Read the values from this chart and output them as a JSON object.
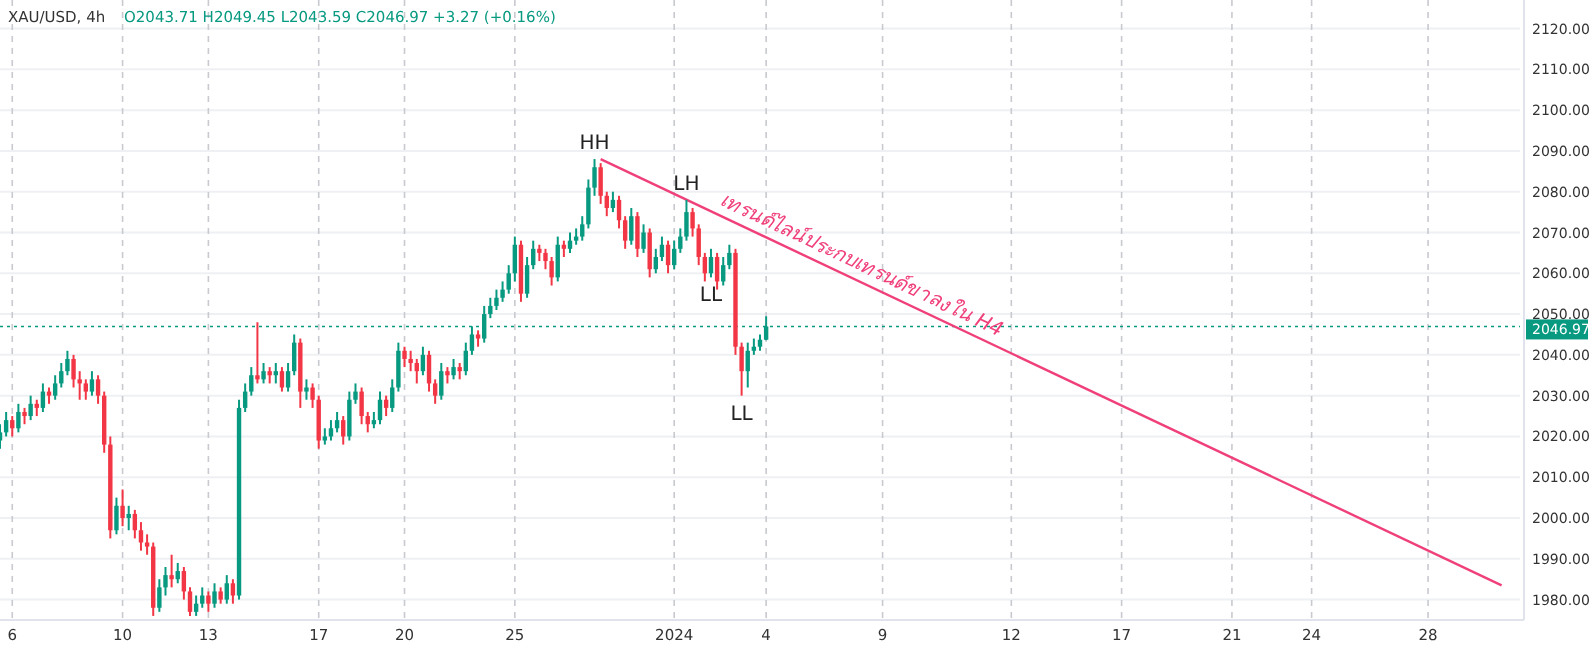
{
  "chart_data": {
    "type": "candlestick",
    "title": "XAU/USD, 4h",
    "subtitle": "O2043.71 H2049.45 L2043.59 C2046.97 +3.27 (+0.16%)",
    "categories": [
      null,
      null,
      "6",
      null,
      null,
      null,
      null,
      null,
      null,
      null,
      null,
      null,
      null,
      null,
      null,
      null,
      null,
      null,
      null,
      null,
      "10",
      null,
      null,
      null,
      null,
      null,
      null,
      null,
      null,
      null,
      null,
      null,
      null,
      null,
      "13",
      null,
      null,
      null,
      null,
      null,
      null,
      null,
      null,
      null,
      null,
      null,
      null,
      null,
      null,
      null,
      null,
      null,
      "17",
      null,
      null,
      null,
      null,
      null,
      null,
      null,
      null,
      null,
      null,
      null,
      null,
      null,
      "20",
      null,
      null,
      null,
      null,
      null,
      null,
      null,
      null,
      null,
      null,
      null,
      null,
      null,
      null,
      null,
      null,
      null,
      "25",
      null,
      null,
      null,
      null,
      null,
      null,
      null,
      null,
      null,
      null,
      null,
      null,
      null,
      null,
      null,
      null,
      null,
      null,
      null,
      null,
      null,
      null,
      null,
      null,
      null,
      "2024",
      null,
      null,
      null,
      null,
      null,
      null,
      null,
      null,
      null,
      null,
      null,
      null,
      null,
      null,
      "4",
      null,
      null,
      null,
      null,
      null,
      null,
      null,
      null,
      null,
      null,
      null,
      null,
      null,
      null,
      null,
      null,
      null,
      null,
      "9",
      null,
      null,
      null,
      null,
      null,
      null,
      null,
      null,
      null,
      null,
      null,
      null,
      null,
      null,
      null,
      null,
      null,
      null,
      null,
      null,
      "12",
      null,
      null,
      null,
      null,
      null,
      null,
      null,
      null,
      null,
      null,
      null,
      null,
      null,
      null,
      null,
      null,
      null,
      "17",
      null,
      null,
      null,
      null,
      null,
      null,
      null,
      null,
      null,
      null,
      null,
      null,
      null,
      null,
      null,
      null,
      null,
      "21",
      null,
      null,
      null,
      null,
      null,
      null,
      null,
      null,
      null,
      null,
      null,
      null,
      "24",
      null,
      null,
      null,
      null,
      null,
      null,
      null,
      null,
      null,
      null,
      null,
      null,
      null,
      null,
      null,
      null,
      null,
      null,
      "28",
      null,
      null,
      null,
      null,
      null,
      null,
      null,
      null,
      null,
      null,
      null,
      null,
      null,
      null,
      null
    ],
    "ohlc": [
      [
        2019,
        2023,
        2017,
        2021
      ],
      [
        2021,
        2026,
        2020,
        2024
      ],
      [
        2024,
        2025,
        2020,
        2022
      ],
      [
        2022,
        2028,
        2021,
        2026
      ],
      [
        2026,
        2027,
        2023,
        2025
      ],
      [
        2025,
        2030,
        2024,
        2028
      ],
      [
        2028,
        2029,
        2025,
        2027
      ],
      [
        2027,
        2033,
        2026,
        2031
      ],
      [
        2031,
        2032,
        2028,
        2030
      ],
      [
        2030,
        2035,
        2029,
        2033
      ],
      [
        2033,
        2038,
        2032,
        2036
      ],
      [
        2036,
        2041,
        2035,
        2039
      ],
      [
        2039,
        2040,
        2032,
        2034
      ],
      [
        2034,
        2036,
        2029,
        2033
      ],
      [
        2033,
        2034,
        2029,
        2031
      ],
      [
        2031,
        2036,
        2030,
        2034
      ],
      [
        2034,
        2035,
        2028,
        2030
      ],
      [
        2030,
        2031,
        2016,
        2018
      ],
      [
        2018,
        2020,
        1995,
        1997
      ],
      [
        1997,
        2005,
        1996,
        2003
      ],
      [
        2003,
        2007,
        1998,
        2000
      ],
      [
        2000,
        2003,
        1997,
        2001
      ],
      [
        2001,
        2002,
        1995,
        1997
      ],
      [
        1997,
        1999,
        1992,
        1994
      ],
      [
        1994,
        1996,
        1991,
        1993
      ],
      [
        1993,
        1994,
        1976,
        1978
      ],
      [
        1978,
        1985,
        1977,
        1983
      ],
      [
        1983,
        1988,
        1981,
        1986
      ],
      [
        1986,
        1991,
        1983,
        1985
      ],
      [
        1985,
        1989,
        1984,
        1987
      ],
      [
        1987,
        1988,
        1980,
        1982
      ],
      [
        1982,
        1983,
        1976,
        1977
      ],
      [
        1977,
        1981,
        1976,
        1979
      ],
      [
        1979,
        1983,
        1978,
        1981
      ],
      [
        1981,
        1982,
        1977,
        1979
      ],
      [
        1979,
        1984,
        1978,
        1982
      ],
      [
        1982,
        1983,
        1979,
        1980
      ],
      [
        1980,
        1986,
        1979,
        1984
      ],
      [
        1984,
        1985,
        1979,
        1981
      ],
      [
        1981,
        2029,
        1980,
        2027
      ],
      [
        2027,
        2033,
        2026,
        2031
      ],
      [
        2031,
        2037,
        2030,
        2035
      ],
      [
        2035,
        2048,
        2033,
        2034
      ],
      [
        2034,
        2038,
        2033,
        2036
      ],
      [
        2036,
        2037,
        2033,
        2035
      ],
      [
        2035,
        2038,
        2033,
        2036
      ],
      [
        2036,
        2037,
        2031,
        2032
      ],
      [
        2032,
        2038,
        2031,
        2036
      ],
      [
        2036,
        2045,
        2035,
        2043
      ],
      [
        2043,
        2044,
        2027,
        2031
      ],
      [
        2031,
        2034,
        2029,
        2032
      ],
      [
        2032,
        2033,
        2027,
        2029
      ],
      [
        2029,
        2030,
        2017,
        2019
      ],
      [
        2019,
        2022,
        2018,
        2020
      ],
      [
        2020,
        2024,
        2019,
        2022
      ],
      [
        2022,
        2026,
        2021,
        2024
      ],
      [
        2024,
        2025,
        2018,
        2020
      ],
      [
        2020,
        2031,
        2019,
        2029
      ],
      [
        2029,
        2033,
        2028,
        2031
      ],
      [
        2031,
        2032,
        2023,
        2025
      ],
      [
        2025,
        2026,
        2021,
        2023
      ],
      [
        2023,
        2026,
        2022,
        2024
      ],
      [
        2024,
        2031,
        2023,
        2029
      ],
      [
        2029,
        2030,
        2025,
        2027
      ],
      [
        2027,
        2034,
        2026,
        2032
      ],
      [
        2032,
        2043,
        2031,
        2041
      ],
      [
        2041,
        2042,
        2037,
        2039
      ],
      [
        2039,
        2041,
        2036,
        2038
      ],
      [
        2038,
        2039,
        2033,
        2036
      ],
      [
        2036,
        2042,
        2035,
        2040
      ],
      [
        2040,
        2041,
        2031,
        2033
      ],
      [
        2033,
        2034,
        2028,
        2030
      ],
      [
        2030,
        2038,
        2029,
        2036
      ],
      [
        2036,
        2037,
        2033,
        2035
      ],
      [
        2035,
        2039,
        2034,
        2037
      ],
      [
        2037,
        2038,
        2034,
        2036
      ],
      [
        2036,
        2043,
        2035,
        2041
      ],
      [
        2041,
        2047,
        2040,
        2045
      ],
      [
        2045,
        2046,
        2042,
        2044
      ],
      [
        2044,
        2052,
        2043,
        2050
      ],
      [
        2050,
        2054,
        2049,
        2052
      ],
      [
        2052,
        2056,
        2051,
        2054
      ],
      [
        2054,
        2058,
        2053,
        2056
      ],
      [
        2056,
        2062,
        2055,
        2060
      ],
      [
        2060,
        2069,
        2058,
        2067
      ],
      [
        2067,
        2068,
        2053,
        2055
      ],
      [
        2055,
        2064,
        2054,
        2062
      ],
      [
        2062,
        2068,
        2061,
        2066
      ],
      [
        2066,
        2067,
        2063,
        2065
      ],
      [
        2065,
        2066,
        2061,
        2063
      ],
      [
        2063,
        2064,
        2057,
        2059
      ],
      [
        2059,
        2069,
        2058,
        2067
      ],
      [
        2067,
        2068,
        2064,
        2066
      ],
      [
        2066,
        2070,
        2065,
        2068
      ],
      [
        2068,
        2071,
        2067,
        2069
      ],
      [
        2069,
        2074,
        2068,
        2072
      ],
      [
        2072,
        2083,
        2071,
        2081
      ],
      [
        2081,
        2088,
        2079,
        2086
      ],
      [
        2086,
        2087,
        2077,
        2079
      ],
      [
        2079,
        2080,
        2074,
        2076
      ],
      [
        2076,
        2080,
        2075,
        2078
      ],
      [
        2078,
        2079,
        2071,
        2073
      ],
      [
        2073,
        2074,
        2066,
        2068
      ],
      [
        2068,
        2076,
        2067,
        2074
      ],
      [
        2074,
        2075,
        2064,
        2066
      ],
      [
        2066,
        2072,
        2065,
        2070
      ],
      [
        2070,
        2071,
        2059,
        2061
      ],
      [
        2061,
        2066,
        2060,
        2064
      ],
      [
        2064,
        2069,
        2063,
        2067
      ],
      [
        2067,
        2068,
        2060,
        2062
      ],
      [
        2062,
        2068,
        2061,
        2066
      ],
      [
        2066,
        2071,
        2065,
        2069
      ],
      [
        2069,
        2078,
        2068,
        2075
      ],
      [
        2075,
        2076,
        2069,
        2071
      ],
      [
        2071,
        2072,
        2062,
        2064
      ],
      [
        2064,
        2065,
        2058,
        2060
      ],
      [
        2060,
        2066,
        2059,
        2064
      ],
      [
        2064,
        2065,
        2056,
        2058
      ],
      [
        2058,
        2064,
        2057,
        2062
      ],
      [
        2062,
        2067,
        2061,
        2065
      ],
      [
        2065,
        2066,
        2040,
        2042
      ],
      [
        2042,
        2043,
        2030,
        2036
      ],
      [
        2036,
        2043,
        2032,
        2041
      ],
      [
        2041,
        2044,
        2040,
        2042
      ],
      [
        2042,
        2045,
        2041,
        2043.71
      ],
      [
        2043.71,
        2049.45,
        2043.59,
        2046.97
      ],
      null,
      null,
      null,
      null,
      null,
      null,
      null,
      null,
      null,
      null,
      null,
      null,
      null,
      null,
      null,
      null,
      null,
      null,
      null,
      null,
      null,
      null,
      null,
      null,
      null,
      null,
      null,
      null,
      null,
      null,
      null,
      null,
      null,
      null,
      null,
      null,
      null,
      null,
      null,
      null,
      null,
      null,
      null,
      null,
      null,
      null,
      null,
      null,
      null,
      null,
      null,
      null,
      null,
      null,
      null,
      null,
      null,
      null,
      null,
      null,
      null,
      null,
      null,
      null,
      null,
      null,
      null,
      null,
      null,
      null,
      null,
      null,
      null,
      null,
      null,
      null,
      null,
      null,
      null,
      null,
      null,
      null,
      null,
      null,
      null,
      null,
      null,
      null,
      null,
      null,
      null,
      null,
      null,
      null,
      null,
      null,
      null,
      null,
      null,
      null,
      null,
      null,
      null,
      null,
      null,
      null,
      null,
      null,
      null,
      null,
      null,
      null,
      null,
      null,
      null,
      null,
      null,
      null,
      null,
      null,
      null,
      null,
      null
    ],
    "series": [
      {
        "type": "line",
        "color": "#f0407a",
        "values": [
          null,
          null,
          null,
          null,
          null,
          null,
          null,
          null,
          null,
          null,
          null,
          null,
          null,
          null,
          null,
          null,
          null,
          null,
          null,
          null,
          null,
          null,
          null,
          null,
          null,
          null,
          null,
          null,
          null,
          null,
          null,
          null,
          null,
          null,
          null,
          null,
          null,
          null,
          null,
          null,
          null,
          null,
          null,
          null,
          null,
          null,
          null,
          null,
          null,
          null,
          null,
          null,
          null,
          null,
          null,
          null,
          null,
          null,
          null,
          null,
          null,
          null,
          null,
          null,
          null,
          null,
          null,
          null,
          null,
          null,
          null,
          null,
          null,
          null,
          null,
          null,
          null,
          null,
          null,
          null,
          null,
          null,
          null,
          null,
          null,
          null,
          null,
          null,
          null,
          null,
          null,
          null,
          null,
          null,
          null,
          null,
          null,
          null,
          2088,
          null,
          null,
          null,
          null,
          null,
          null,
          null,
          null,
          null,
          null,
          null,
          null,
          null,
          null,
          null,
          null,
          null,
          null,
          null,
          null,
          null,
          null,
          null,
          null,
          null,
          null,
          null,
          null,
          null,
          null,
          null,
          null,
          null,
          null,
          null,
          null,
          null,
          null,
          null,
          null,
          null,
          null,
          null,
          null,
          null,
          null,
          null,
          null,
          null,
          null,
          null,
          null,
          null,
          null,
          null,
          null,
          null,
          null,
          null,
          null,
          null,
          null,
          null,
          null,
          null,
          null,
          null,
          null,
          null,
          null,
          null,
          null,
          null,
          null,
          null,
          null,
          null,
          null,
          null,
          null,
          null,
          null,
          null,
          null,
          null,
          null,
          null,
          null,
          null,
          null,
          null,
          null,
          null,
          null,
          null,
          null,
          null,
          null,
          null,
          null,
          null,
          null,
          null,
          null,
          null,
          null,
          null,
          null,
          null,
          null,
          null,
          null,
          null,
          null,
          null,
          null,
          null,
          null,
          null,
          null,
          null,
          null,
          null,
          null,
          null,
          null,
          null,
          null,
          null,
          null,
          null,
          null,
          null,
          null,
          null,
          null,
          null,
          null,
          null,
          null,
          null,
          null,
          null,
          null,
          null,
          null,
          1983.5,
          null,
          null,
          null
        ]
      }
    ],
    "ylim": [
      1975,
      2127
    ],
    "yticks": [
      {
        "value": 1980,
        "label": "1980.00"
      },
      {
        "value": 1990,
        "label": "1990.00"
      },
      {
        "value": 2000,
        "label": "2000.00"
      },
      {
        "value": 2010,
        "label": "2010.00"
      },
      {
        "value": 2020,
        "label": "2020.00"
      },
      {
        "value": 2030,
        "label": "2030.00"
      },
      {
        "value": 2040,
        "label": "2040.00"
      },
      {
        "value": 2050,
        "label": "2050.00"
      },
      {
        "value": 2060,
        "label": "2060.00"
      },
      {
        "value": 2070,
        "label": "2070.00"
      },
      {
        "value": 2080,
        "label": "2080.00"
      },
      {
        "value": 2090,
        "label": "2090.00"
      },
      {
        "value": 2100,
        "label": "2100.00"
      },
      {
        "value": 2110,
        "label": "2110.00"
      },
      {
        "value": 2120,
        "label": "2120.00"
      }
    ],
    "ref_lines": [
      {
        "axis": "y",
        "value": 2046.97,
        "label": "2046.97",
        "color": "#089981",
        "line_style": "dotted"
      }
    ],
    "annotations": [
      {
        "text": "HH",
        "y": 2088
      },
      {
        "text": "LH",
        "y": 2078
      },
      {
        "text": "LL",
        "y": 2059
      },
      {
        "text": "LL",
        "y": 2030
      },
      "เทรนด์ไลน์ประกบเทรนด์ขาลงใน H4"
    ],
    "grid": true
  }
}
